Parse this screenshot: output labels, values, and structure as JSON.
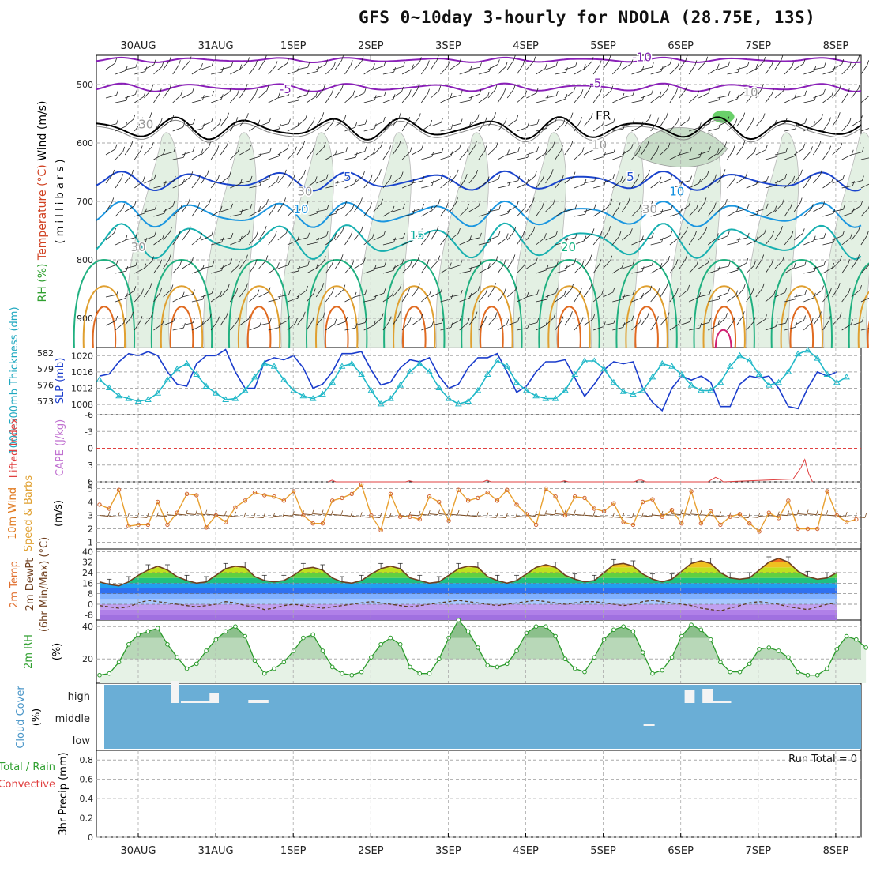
{
  "title": "GFS 0~10day 3-hourly for NDOLA (28.75E, 13S)",
  "dates": [
    "30AUG",
    "31AUG",
    "1SEP",
    "2SEP",
    "3SEP",
    "4SEP",
    "5SEP",
    "6SEP",
    "7SEP",
    "8SEP"
  ],
  "colors": {
    "grid": "#aaaaaa",
    "cloud": "#6aaed6",
    "temp_line": "#704020",
    "rh_fill": "#cfe8cf",
    "rh_line": "#2a9a2a",
    "wind_line": "#e8a030",
    "slp": "#1a3ccc",
    "thk": "#20b8c8"
  },
  "chart_data": [
    {
      "type": "heatmap",
      "name": "pressure-panel",
      "ylabel_parts": [
        "Wind (m/s)",
        "Temperature (°C)",
        "RH (%)"
      ],
      "yunit": "( m i l l i b a r s )",
      "yticks": [
        500,
        600,
        700,
        800,
        900
      ],
      "ylim": [
        450,
        950
      ],
      "contour_labels": [
        {
          "text": "-10",
          "x": 6.5,
          "y": 460,
          "color": "#8020b0"
        },
        {
          "text": "-5",
          "x": 1.9,
          "y": 515,
          "color": "#8020b0"
        },
        {
          "text": "-5",
          "x": 5.9,
          "y": 505,
          "color": "#8020b0"
        },
        {
          "text": "FR",
          "x": 6.0,
          "y": 560,
          "color": "#000000"
        },
        {
          "text": "5",
          "x": 2.7,
          "y": 665,
          "color": "#2050d0"
        },
        {
          "text": "5",
          "x": 6.35,
          "y": 665,
          "color": "#2050d0"
        },
        {
          "text": "10",
          "x": 2.1,
          "y": 720,
          "color": "#1090e0"
        },
        {
          "text": "10",
          "x": 6.95,
          "y": 690,
          "color": "#1090e0"
        },
        {
          "text": "15",
          "x": 3.6,
          "y": 765,
          "color": "#10b0a0"
        },
        {
          "text": "20",
          "x": 5.55,
          "y": 785,
          "color": "#10b080"
        },
        {
          "text": "30",
          "x": 0.1,
          "y": 575,
          "color": "#999999"
        },
        {
          "text": "30",
          "x": 2.15,
          "y": 690,
          "color": "#999999"
        },
        {
          "text": "30",
          "x": 0.0,
          "y": 785,
          "color": "#999999"
        },
        {
          "text": "10",
          "x": 5.95,
          "y": 610,
          "color": "#999999"
        },
        {
          "text": "30",
          "x": 6.6,
          "y": 720,
          "color": "#999999"
        },
        {
          "text": "10",
          "x": 7.9,
          "y": 520,
          "color": "#999999"
        }
      ]
    },
    {
      "type": "line",
      "name": "slp-thickness",
      "ylabel_left": "1000-500mb Thickness (dm)",
      "ylabel_right": "SLP (mb)",
      "left_ticks": [
        582,
        579,
        576,
        573
      ],
      "right_ticks": [
        1020,
        1016,
        1012,
        1008
      ],
      "ylim_left": [
        570.5,
        583
      ],
      "ylim_right": [
        1005.5,
        1022
      ],
      "series": [
        {
          "name": "SLP",
          "axis": "right",
          "values": [
            1015,
            1015.5,
            1018.5,
            1020.5,
            1020,
            1021,
            1020,
            1016,
            1013,
            1012.5,
            1018,
            1020,
            1020,
            1021.5,
            1016,
            1012,
            1012,
            1018.5,
            1019.5,
            1019,
            1020,
            1017,
            1012,
            1013,
            1016,
            1020.5,
            1020.5,
            1021,
            1016.5,
            1012.8,
            1013.5,
            1017,
            1019,
            1018.5,
            1019.5,
            1015,
            1012,
            1013,
            1017,
            1019.5,
            1019.5,
            1020.5,
            1016,
            1011,
            1012.5,
            1016,
            1018.5,
            1018.5,
            1019,
            1014.5,
            1010,
            1013,
            1016.5,
            1018.5,
            1018,
            1018.5,
            1012,
            1008.5,
            1006.5,
            1012,
            1015,
            1014,
            1015,
            1013.5,
            1007.5,
            1007.5,
            1013,
            1015,
            1014.5,
            1015,
            1012,
            1007.5,
            1007,
            1012,
            1016,
            1015,
            1016
          ]
        },
        {
          "name": "Thickness",
          "axis": "left",
          "values": [
            577,
            575.5,
            574,
            573.5,
            573,
            573.3,
            574.5,
            577,
            579,
            580,
            578,
            575.8,
            574.5,
            573.3,
            573.5,
            575,
            577.5,
            580,
            579.5,
            577,
            575,
            574,
            573.5,
            574.3,
            576.5,
            579.5,
            580,
            578,
            575,
            572.5,
            573.5,
            576,
            578.5,
            580,
            578.5,
            575.5,
            573.5,
            572.5,
            573,
            575,
            578,
            580.5,
            579.5,
            576.5,
            575,
            574,
            573.5,
            573.5,
            575,
            578,
            580.5,
            580.5,
            579,
            576.5,
            574.8,
            574.3,
            575,
            577.5,
            580,
            579.5,
            578,
            576,
            575,
            575,
            576.5,
            579.5,
            581.5,
            580.5,
            578,
            576,
            576.5,
            578.5,
            581.8,
            582.5,
            581,
            578,
            576.5,
            577.5
          ]
        }
      ]
    },
    {
      "type": "line",
      "name": "cape-li",
      "ylabel": "Lifted Index",
      "ylabel2": "CAPE (J/kg)",
      "yticks": [
        "-6",
        "-3",
        "0",
        "3",
        "6"
      ],
      "ylim": [
        -6,
        6
      ],
      "series": [
        {
          "name": "Lifted Index",
          "x": [
            2.45,
            2.5,
            2.55,
            3.45,
            3.5,
            3.55,
            4.45,
            4.5,
            4.55,
            5.45,
            5.5,
            5.55,
            6.4,
            6.45,
            6.5,
            6.55,
            7.35,
            7.45,
            7.5,
            7.55,
            8.45,
            8.55,
            8.6,
            8.65,
            8.7
          ],
          "values": [
            6,
            5.7,
            6,
            6,
            5.8,
            6,
            6,
            5.7,
            6,
            6,
            5.8,
            6,
            6,
            5.7,
            5.7,
            6,
            6,
            5.2,
            5.5,
            6,
            5.5,
            3.5,
            2,
            4.5,
            6
          ]
        }
      ]
    },
    {
      "type": "line",
      "name": "wind10m",
      "ylabel_parts": [
        "10m Wind",
        "Speed & Barbs",
        "(m/s)"
      ],
      "yticks": [
        "5",
        "4",
        "3",
        "2",
        "1"
      ],
      "ylim": [
        0.5,
        5.5
      ],
      "series": [
        {
          "name": "Speed",
          "values": [
            3.8,
            3.5,
            4.9,
            2.2,
            2.3,
            2.3,
            4.0,
            2.3,
            3.2,
            4.6,
            4.5,
            2.1,
            3.0,
            2.5,
            3.6,
            4.1,
            4.7,
            4.5,
            4.4,
            4.1,
            4.8,
            3.0,
            2.4,
            2.4,
            4.1,
            4.3,
            4.6,
            5.3,
            3.0,
            1.9,
            4.6,
            2.9,
            2.9,
            2.7,
            4.4,
            4.0,
            2.6,
            4.9,
            4.1,
            4.3,
            4.7,
            4.1,
            4.9,
            3.8,
            3.1,
            2.3,
            5.0,
            4.4,
            3.0,
            4.4,
            4.3,
            3.5,
            3.3,
            3.9,
            2.5,
            2.3,
            4.0,
            4.2,
            2.9,
            3.4,
            2.4,
            4.8,
            2.4,
            3.3,
            2.3,
            2.9,
            3.1,
            2.4,
            1.8,
            3.2,
            2.8,
            4.1,
            2.0,
            2.0,
            2.0,
            4.8,
            3.0,
            2.5,
            2.7
          ]
        }
      ]
    },
    {
      "type": "area",
      "name": "temp2m",
      "ylabel_parts": [
        "2m Temp",
        "2m DewPt",
        "(6hr Min/Max) (°C)"
      ],
      "yticks": [
        "40",
        "32",
        "24",
        "16",
        "8",
        "0",
        "-8"
      ],
      "ylim": [
        -12,
        42
      ],
      "series": [
        {
          "name": "Temp",
          "values": [
            17,
            15,
            14,
            17,
            22,
            26,
            29,
            26,
            21,
            18,
            16,
            17,
            22,
            27,
            29,
            28,
            21,
            18,
            17,
            18,
            22,
            27,
            28,
            26,
            20,
            17,
            16,
            18,
            23,
            27,
            29,
            27,
            20,
            18,
            16,
            17,
            22,
            27,
            29,
            28,
            21,
            18,
            16,
            18,
            23,
            28,
            30,
            28,
            22,
            19,
            17,
            18,
            24,
            30,
            31,
            29,
            23,
            19,
            17,
            19,
            25,
            31,
            33,
            31,
            24,
            20,
            19,
            20,
            26,
            32,
            35,
            32,
            25,
            21,
            19,
            20,
            24
          ]
        },
        {
          "name": "DewPt",
          "values": [
            -1,
            -2,
            -3,
            -2,
            1,
            3,
            2,
            1,
            0,
            -1,
            -2,
            -1,
            0,
            2,
            1,
            -1,
            -2,
            -4,
            -3,
            -1,
            0,
            -1,
            -2,
            -3,
            -2,
            -1,
            0,
            1,
            2,
            1,
            0,
            -1,
            -2,
            -1,
            0,
            1,
            2,
            3,
            2,
            1,
            0,
            -1,
            0,
            1,
            2,
            3,
            2,
            1,
            0,
            1,
            2,
            2,
            1,
            0,
            -1,
            0,
            2,
            3,
            2,
            1,
            0,
            -1,
            -3,
            -4,
            -5,
            -3,
            -1,
            1,
            2,
            1,
            0,
            -2,
            -3,
            -4,
            -2,
            0,
            1
          ]
        }
      ]
    },
    {
      "type": "area",
      "name": "rh2m",
      "ylabel": "2m RH",
      "yunit": "(%)",
      "yticks": [
        "40",
        "20"
      ],
      "ylim": [
        5,
        44
      ],
      "series": [
        {
          "name": "RH",
          "values": [
            10,
            11,
            18,
            29,
            35,
            37,
            39,
            29,
            21,
            14,
            17,
            25,
            32,
            37,
            40,
            34,
            19,
            11,
            14,
            18,
            25,
            33,
            35,
            25,
            15,
            11,
            10,
            12,
            21,
            29,
            33,
            29,
            15,
            11,
            11,
            20,
            33,
            44,
            37,
            27,
            16,
            15,
            17,
            25,
            36,
            40,
            40,
            34,
            20,
            14,
            12,
            21,
            32,
            38,
            40,
            37,
            24,
            11,
            13,
            21,
            34,
            41,
            38,
            32,
            18,
            12,
            12,
            17,
            26,
            27,
            25,
            21,
            12,
            10,
            10,
            14,
            26,
            34,
            32,
            27
          ]
        }
      ]
    },
    {
      "type": "bar",
      "name": "cloud-cover",
      "ylabel": "Cloud Cover",
      "yunit": "(%)",
      "levels": [
        "high",
        "middle",
        "low"
      ],
      "background": "#6aaed6"
    },
    {
      "type": "bar",
      "name": "precip",
      "ylabel_parts": [
        "Total / Rain",
        "Convective",
        "3hr Precip (mm)"
      ],
      "yticks": [
        "0.8",
        "0.6",
        "0.4",
        "0.2",
        "0"
      ],
      "ylim": [
        0,
        0.9
      ],
      "run_total": "Run Total = 0",
      "values": []
    }
  ]
}
